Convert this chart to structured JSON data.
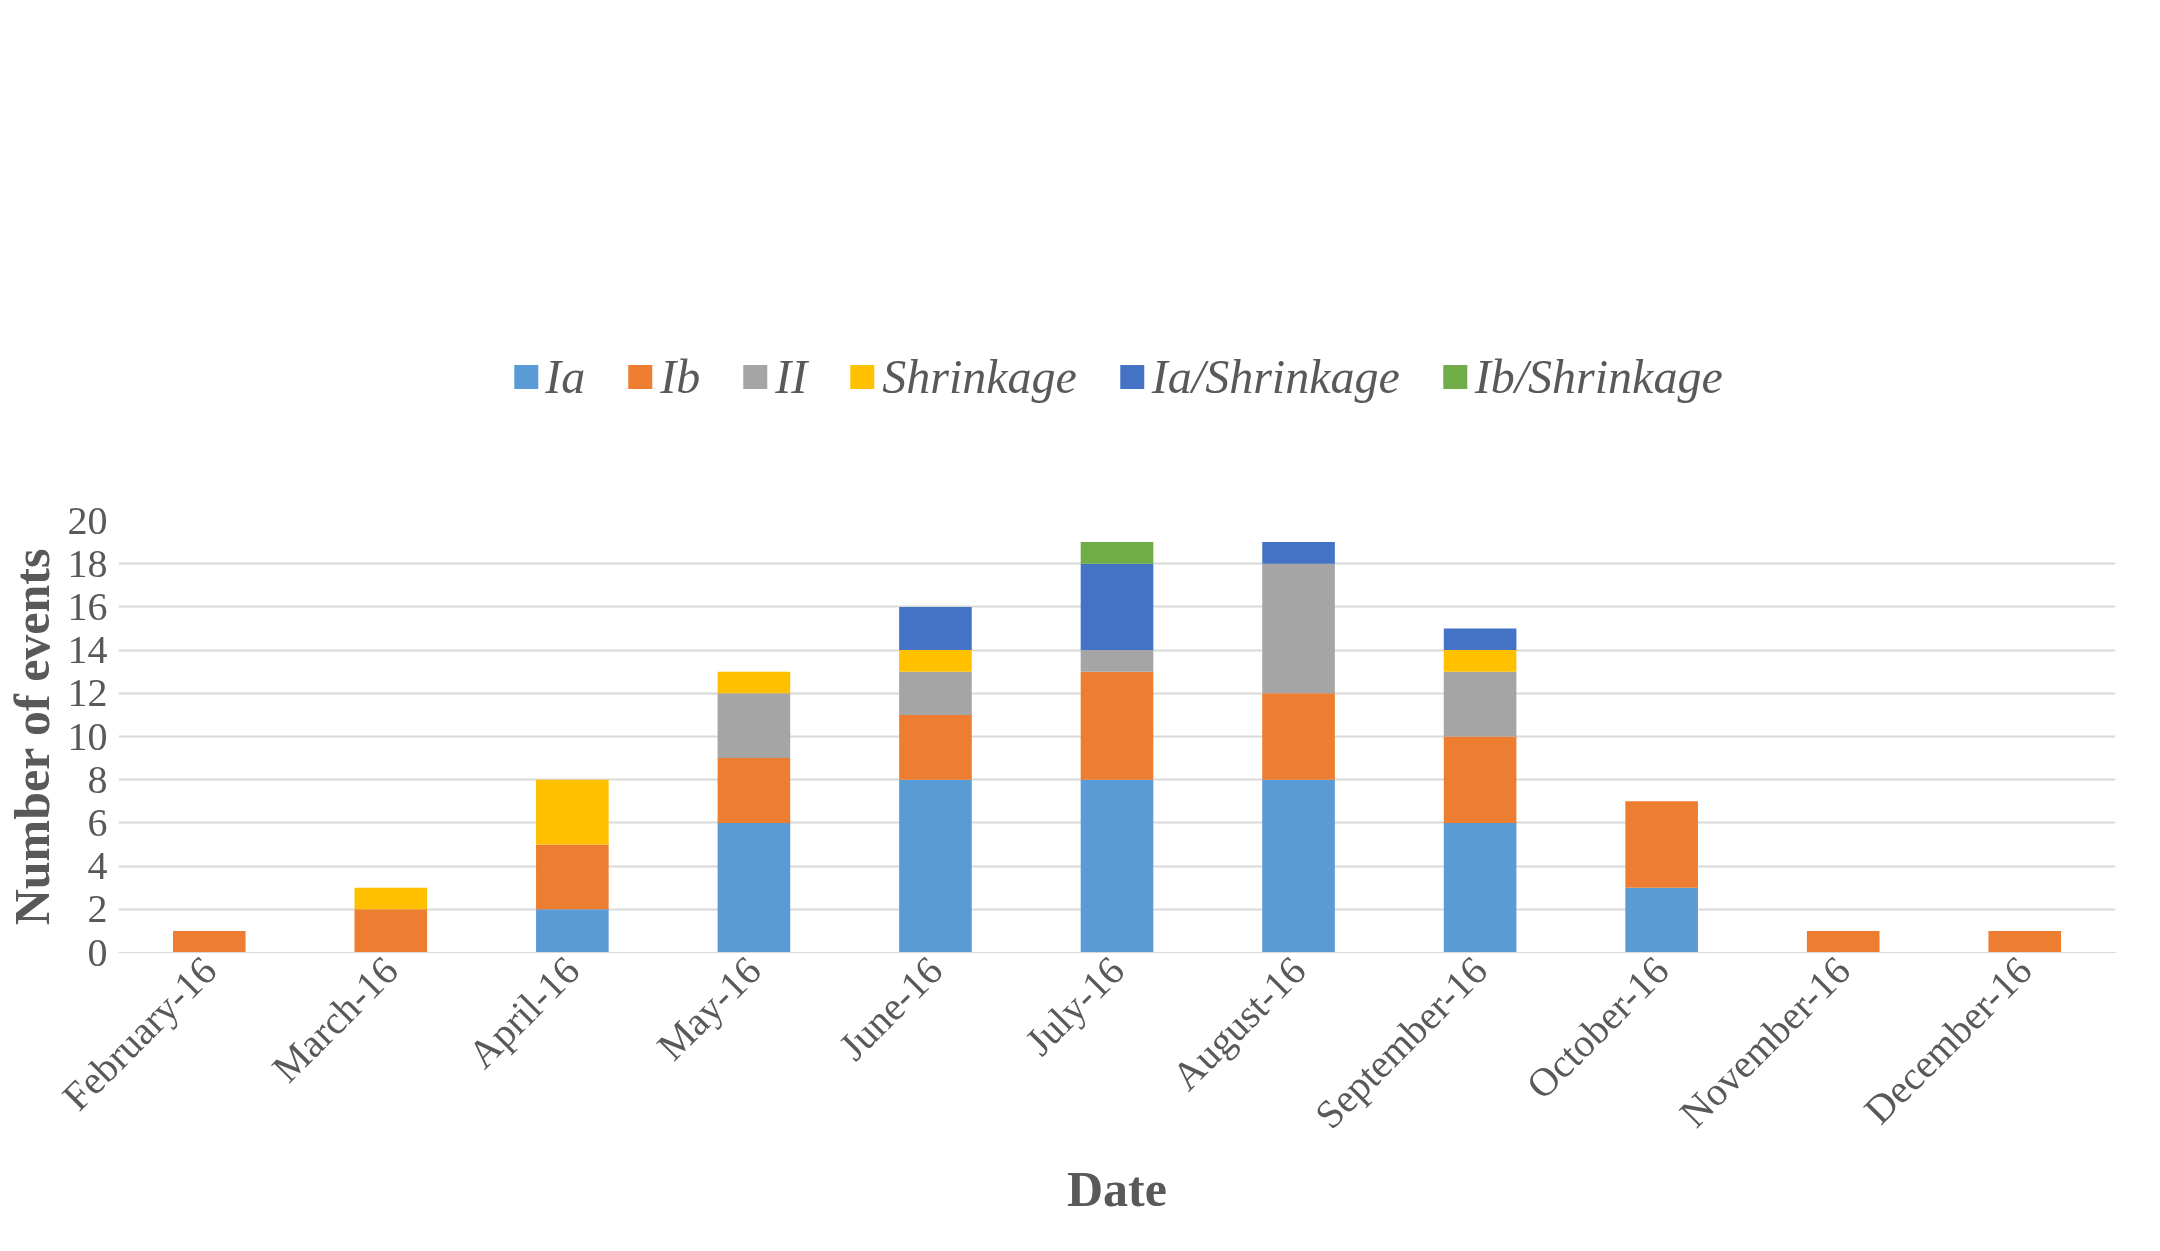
{
  "chart_data": {
    "type": "bar",
    "stacked": true,
    "xlabel": "Date",
    "ylabel": "Number of events",
    "categories": [
      "February-16",
      "March-16",
      "April-16",
      "May-16",
      "June-16",
      "July-16",
      "August-16",
      "September-16",
      "October-16",
      "November-16",
      "December-16"
    ],
    "series": [
      {
        "name": "Ia",
        "color": "#5b9bd5",
        "values": [
          0,
          0,
          2,
          6,
          8,
          8,
          8,
          6,
          3,
          0,
          0
        ]
      },
      {
        "name": "Ib",
        "color": "#ed7d31",
        "values": [
          1,
          2,
          3,
          3,
          3,
          5,
          4,
          4,
          4,
          1,
          1
        ]
      },
      {
        "name": "II",
        "color": "#a5a5a5",
        "values": [
          0,
          0,
          0,
          3,
          2,
          1,
          6,
          3,
          0,
          0,
          0
        ]
      },
      {
        "name": "Shrinkage",
        "color": "#ffc000",
        "values": [
          0,
          1,
          3,
          1,
          1,
          0,
          0,
          1,
          0,
          0,
          0
        ]
      },
      {
        "name": "Ia/Shrinkage",
        "color": "#4472c4",
        "values": [
          0,
          0,
          0,
          0,
          2,
          4,
          1,
          1,
          0,
          0,
          0
        ]
      },
      {
        "name": "Ib/Shrinkage",
        "color": "#70ad47",
        "values": [
          0,
          0,
          0,
          0,
          0,
          1,
          0,
          0,
          0,
          0,
          0
        ]
      }
    ],
    "ylim": [
      0,
      20
    ],
    "yticks": [
      0,
      2,
      4,
      6,
      8,
      10,
      12,
      14,
      16,
      18,
      20
    ],
    "grid": "y",
    "legend": "top"
  }
}
